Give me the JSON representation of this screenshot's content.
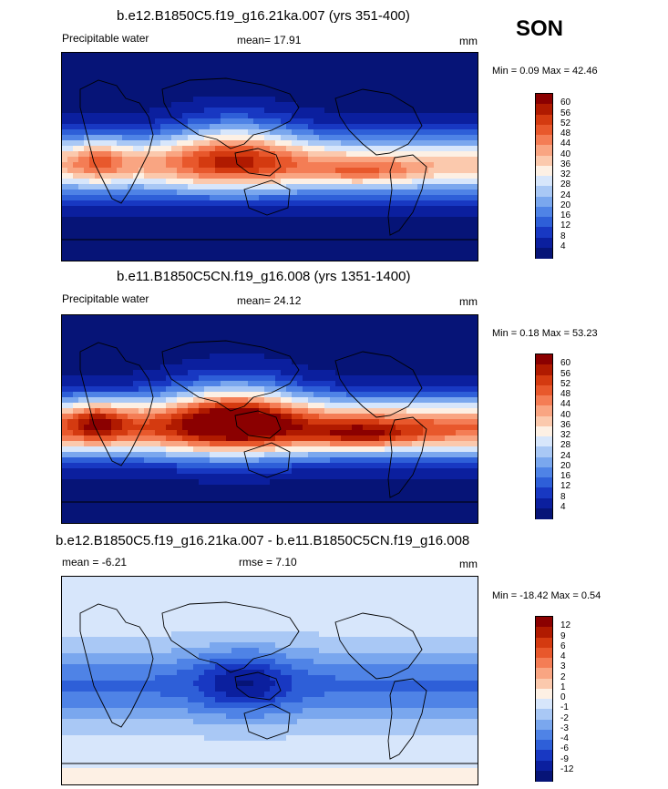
{
  "season": "SON",
  "panels": [
    {
      "title": "b.e12.B1850C5.f19_g16.21ka.007 (yrs 351-400)",
      "left_label": "Precipitable water",
      "center_label": "mean=  17.91",
      "unit": "mm",
      "minmax": "Min =   0.09 Max =  42.46",
      "levels": [
        "60",
        "56",
        "52",
        "48",
        "44",
        "40",
        "36",
        "32",
        "28",
        "24",
        "20",
        "16",
        "12",
        "8",
        "4"
      ],
      "colors": [
        "#8b0000",
        "#b01a00",
        "#d43a10",
        "#e8582c",
        "#f47d55",
        "#f9a582",
        "#fbc9ad",
        "#fdf0e4",
        "#d7e6fb",
        "#a9c8f5",
        "#7aa7ee",
        "#4f83e6",
        "#2e5fd8",
        "#1838c2",
        "#0b1f9e",
        "#061477"
      ],
      "kind": "abs_old"
    },
    {
      "title": "b.e11.B1850C5CN.f19_g16.008 (yrs 1351-1400)",
      "left_label": "Precipitable water",
      "center_label": "mean=  24.12",
      "unit": "mm",
      "minmax": "Min =   0.18 Max =  53.23",
      "levels": [
        "60",
        "56",
        "52",
        "48",
        "44",
        "40",
        "36",
        "32",
        "28",
        "24",
        "20",
        "16",
        "12",
        "8",
        "4"
      ],
      "colors": [
        "#8b0000",
        "#b01a00",
        "#d43a10",
        "#e8582c",
        "#f47d55",
        "#f9a582",
        "#fbc9ad",
        "#fdf0e4",
        "#d7e6fb",
        "#a9c8f5",
        "#7aa7ee",
        "#4f83e6",
        "#2e5fd8",
        "#1838c2",
        "#0b1f9e",
        "#061477"
      ],
      "kind": "abs_new"
    },
    {
      "title": "b.e12.B1850C5.f19_g16.21ka.007 - b.e11.B1850C5CN.f19_g16.008",
      "left_label": "mean =  -6.21",
      "center_label": "rmse =   7.10",
      "unit": "mm",
      "minmax": "Min = -18.42 Max =   0.54",
      "levels": [
        "12",
        "9",
        "6",
        "4",
        "3",
        "2",
        "1",
        "0",
        "-1",
        "-2",
        "-3",
        "-4",
        "-6",
        "-9",
        "-12"
      ],
      "colors": [
        "#8b0000",
        "#b01a00",
        "#d43a10",
        "#e8582c",
        "#f47d55",
        "#f9a582",
        "#fbc9ad",
        "#fdf0e4",
        "#d7e6fb",
        "#a9c8f5",
        "#7aa7ee",
        "#4f83e6",
        "#2e5fd8",
        "#1838c2",
        "#0b1f9e",
        "#061477"
      ],
      "kind": "diff"
    }
  ]
}
